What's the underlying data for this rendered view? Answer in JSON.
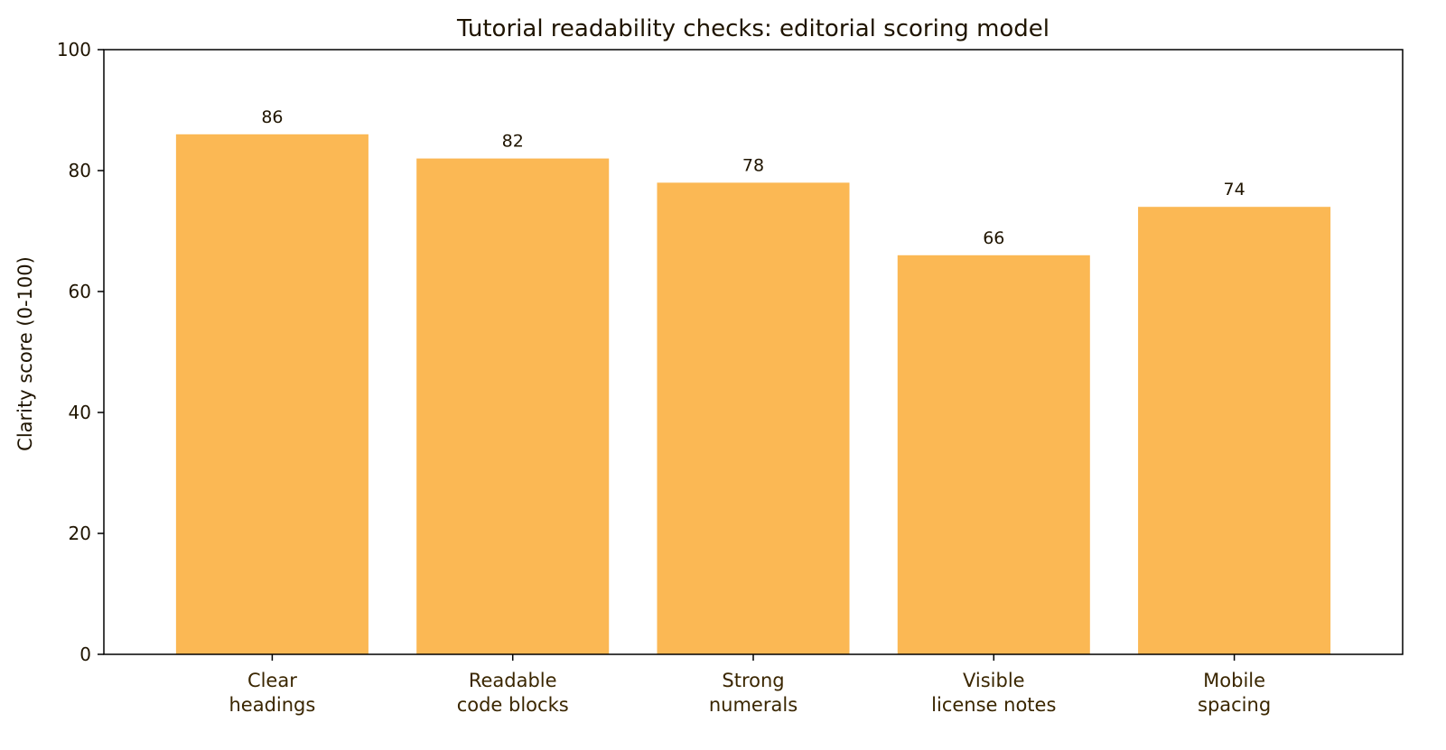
{
  "chart_data": {
    "type": "bar",
    "title": "Tutorial readability checks: editorial scoring model",
    "xlabel": "",
    "ylabel": "Clarity score (0-100)",
    "ylim": [
      0,
      100
    ],
    "yticks": [
      0,
      20,
      40,
      60,
      80,
      100
    ],
    "categories": [
      [
        "Clear",
        "headings"
      ],
      [
        "Readable",
        "code blocks"
      ],
      [
        "Strong",
        "numerals"
      ],
      [
        "Visible",
        "license notes"
      ],
      [
        "Mobile",
        "spacing"
      ]
    ],
    "values": [
      86,
      82,
      78,
      66,
      74
    ],
    "data_labels": [
      "86",
      "82",
      "78",
      "66",
      "74"
    ],
    "grid": false,
    "legend": "none",
    "colors": {
      "bar": "#fbb854",
      "text": "#1f1400",
      "tick_label_text": "#3a2600",
      "axis": "#000000",
      "background": "#ffffff"
    }
  }
}
